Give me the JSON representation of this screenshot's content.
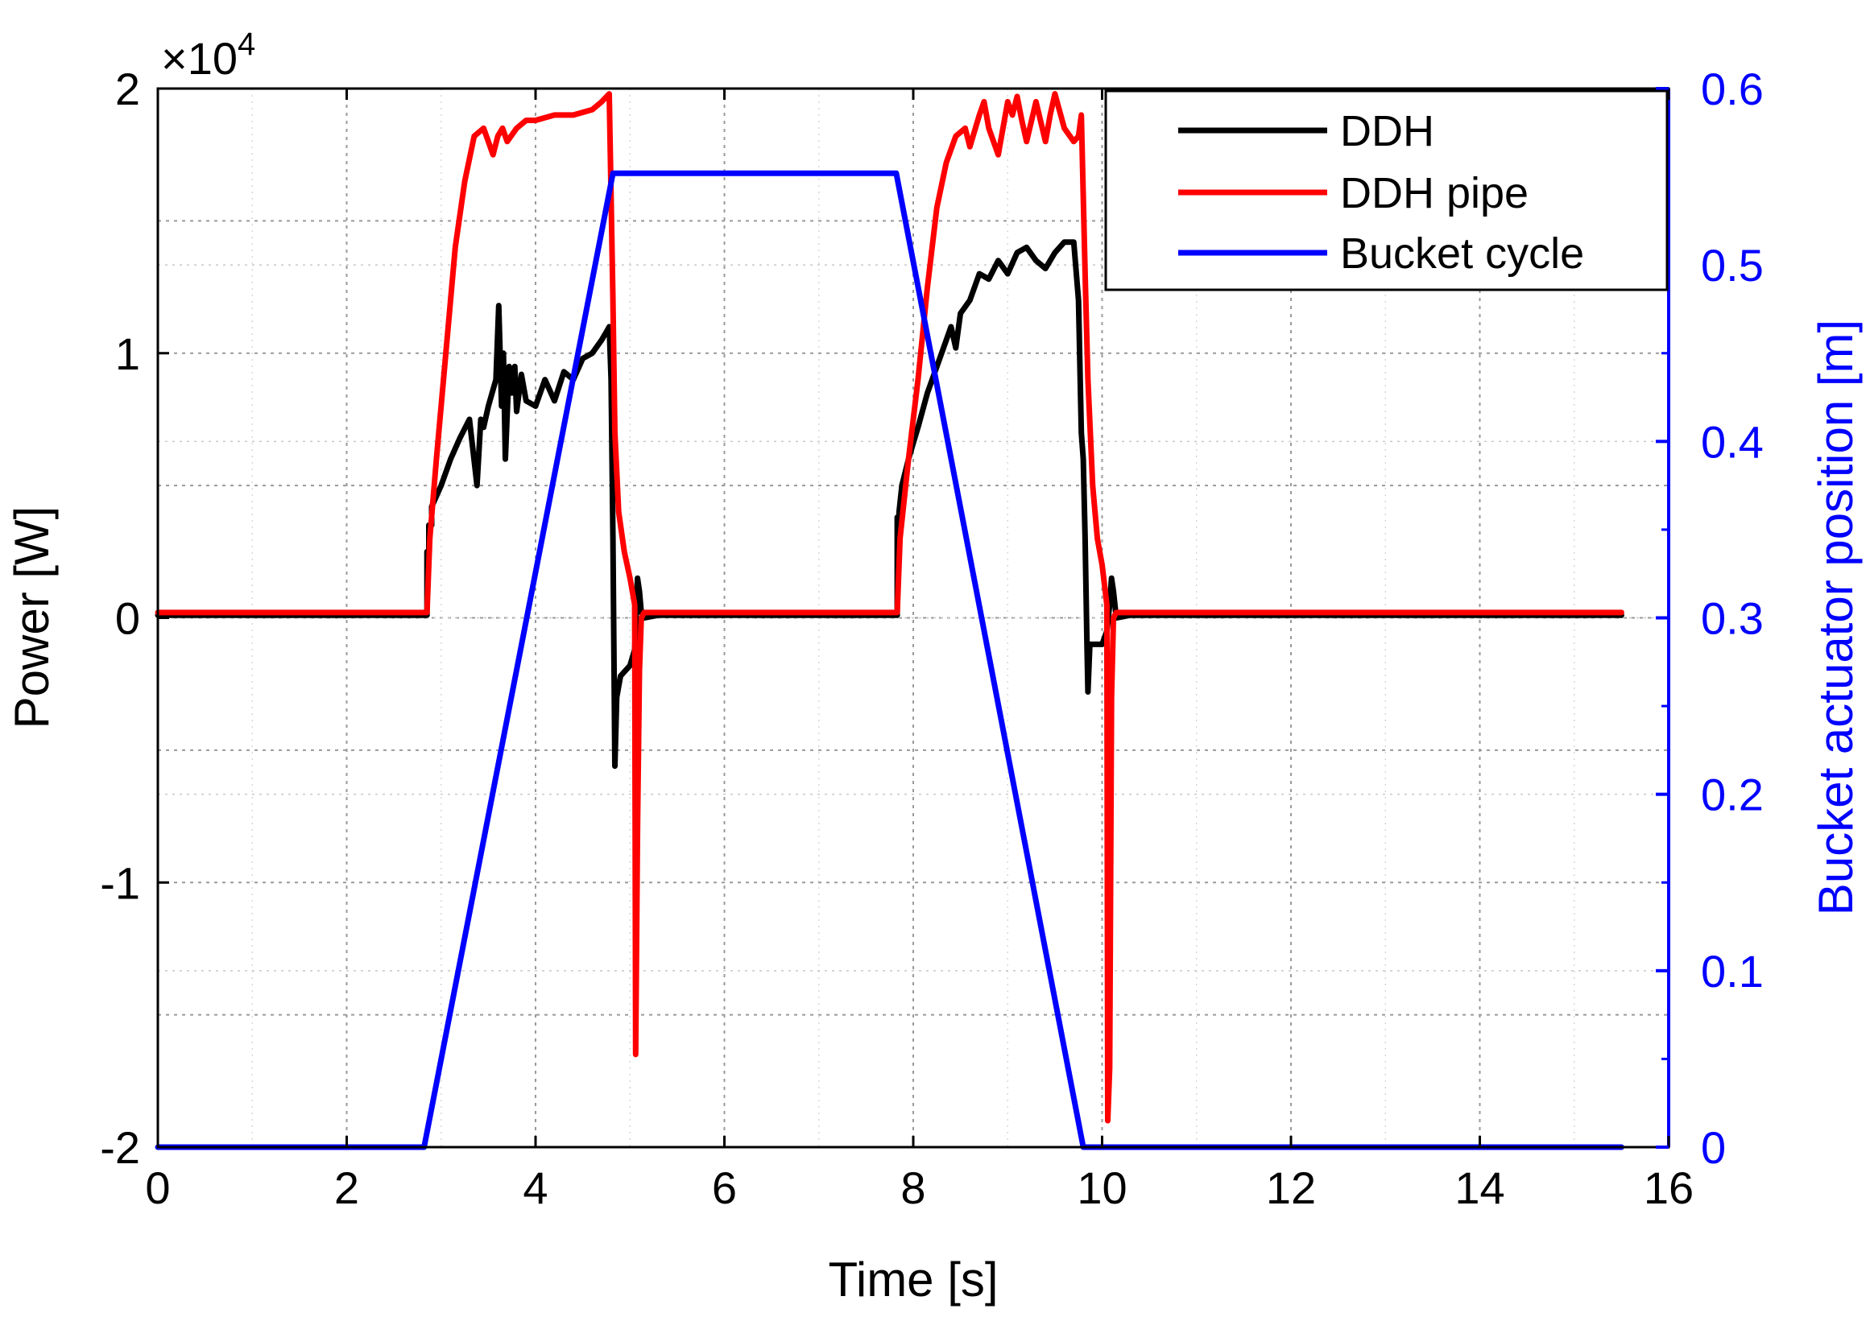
{
  "chart_data": {
    "type": "line",
    "xlabel": "Time [s]",
    "ylabel_left": "Power [W]",
    "ylabel_right": "Bucket actuator position [m]",
    "y_multiplier": "×10",
    "y_multiplier_exp": "4",
    "xlim": [
      0,
      16
    ],
    "ylim_left": [
      -2,
      2
    ],
    "ylim_right": [
      0,
      0.6
    ],
    "x_ticks": [
      "0",
      "2",
      "4",
      "6",
      "8",
      "10",
      "12",
      "14",
      "16"
    ],
    "y_left_ticks": [
      "2",
      "1",
      "0",
      "-1",
      "-2"
    ],
    "y_right_ticks": [
      "0.6",
      "0.5",
      "0.4",
      "0.3",
      "0.2",
      "0.1",
      "0"
    ],
    "grid": true,
    "legend_position": "top-right",
    "colors": {
      "ddh": "#000000",
      "ddh_pipe": "#ff0000",
      "bucket": "#0000ff",
      "right_axis": "#0000ff"
    },
    "series": [
      {
        "name": "DDH",
        "axis": "left",
        "x": [
          0,
          2.85,
          2.85,
          2.87,
          2.87,
          2.9,
          2.9,
          3.0,
          3.1,
          3.2,
          3.3,
          3.38,
          3.42,
          3.45,
          3.5,
          3.58,
          3.61,
          3.64,
          3.66,
          3.68,
          3.72,
          3.75,
          3.78,
          3.8,
          3.85,
          3.9,
          4.0,
          4.1,
          4.2,
          4.3,
          4.4,
          4.5,
          4.6,
          4.7,
          4.75,
          4.78,
          4.8,
          4.82,
          4.84,
          4.86,
          4.9,
          5.0,
          5.05,
          5.08,
          5.1,
          5.12,
          5.15,
          5.3,
          7.83,
          7.83,
          7.85,
          7.85,
          7.88,
          7.95,
          8.05,
          8.15,
          8.3,
          8.4,
          8.45,
          8.5,
          8.6,
          8.7,
          8.8,
          8.9,
          9.0,
          9.1,
          9.2,
          9.3,
          9.4,
          9.5,
          9.6,
          9.7,
          9.75,
          9.78,
          9.8,
          9.82,
          9.84,
          9.85,
          9.87,
          9.9,
          10.0,
          10.05,
          10.08,
          10.1,
          10.12,
          10.15,
          10.3,
          15.5
        ],
        "y": [
          0.01,
          0.01,
          0.25,
          0.25,
          0.35,
          0.35,
          0.42,
          0.5,
          0.6,
          0.68,
          0.75,
          0.5,
          0.75,
          0.72,
          0.8,
          0.9,
          1.18,
          0.8,
          1.0,
          0.6,
          0.95,
          0.85,
          0.95,
          0.78,
          0.92,
          0.82,
          0.8,
          0.9,
          0.82,
          0.93,
          0.9,
          0.98,
          1.0,
          1.05,
          1.08,
          1.1,
          0.9,
          0.3,
          -0.56,
          -0.3,
          -0.22,
          -0.18,
          -0.12,
          0.15,
          0.1,
          0.02,
          0.0,
          0.01,
          0.01,
          0.38,
          0.38,
          0.4,
          0.5,
          0.6,
          0.72,
          0.85,
          1.0,
          1.1,
          1.02,
          1.15,
          1.2,
          1.3,
          1.28,
          1.35,
          1.3,
          1.38,
          1.4,
          1.35,
          1.32,
          1.38,
          1.42,
          1.42,
          1.2,
          0.7,
          0.6,
          0.3,
          -0.1,
          -0.28,
          -0.1,
          -0.1,
          -0.1,
          -0.05,
          0.05,
          0.15,
          0.1,
          0.0,
          0.01,
          0.01
        ]
      },
      {
        "name": "DDH pipe",
        "axis": "left",
        "x": [
          0,
          2.85,
          2.88,
          2.95,
          3.05,
          3.15,
          3.25,
          3.35,
          3.45,
          3.5,
          3.55,
          3.6,
          3.65,
          3.7,
          3.8,
          3.9,
          4.0,
          4.2,
          4.4,
          4.6,
          4.7,
          4.78,
          4.82,
          4.84,
          4.88,
          4.94,
          5.0,
          5.05,
          5.06,
          5.08,
          5.1,
          5.12,
          5.15,
          5.3,
          7.83,
          7.86,
          7.95,
          8.05,
          8.15,
          8.25,
          8.35,
          8.45,
          8.55,
          8.6,
          8.7,
          8.75,
          8.8,
          8.9,
          9.0,
          9.05,
          9.1,
          9.15,
          9.2,
          9.3,
          9.4,
          9.45,
          9.5,
          9.6,
          9.7,
          9.75,
          9.78,
          9.82,
          9.85,
          9.9,
          9.95,
          10.0,
          10.05,
          10.06,
          10.08,
          10.1,
          10.12,
          10.15,
          10.3,
          15.5
        ],
        "y": [
          0.02,
          0.02,
          0.3,
          0.6,
          1.0,
          1.4,
          1.65,
          1.82,
          1.85,
          1.8,
          1.75,
          1.82,
          1.85,
          1.8,
          1.85,
          1.88,
          1.88,
          1.9,
          1.9,
          1.92,
          1.95,
          1.98,
          1.2,
          0.7,
          0.4,
          0.25,
          0.15,
          0.05,
          -1.65,
          -0.8,
          -0.2,
          0.0,
          0.02,
          0.02,
          0.02,
          0.3,
          0.6,
          0.9,
          1.25,
          1.55,
          1.72,
          1.82,
          1.85,
          1.78,
          1.9,
          1.95,
          1.85,
          1.75,
          1.95,
          1.9,
          1.97,
          1.88,
          1.8,
          1.95,
          1.8,
          1.9,
          1.98,
          1.85,
          1.8,
          1.82,
          1.9,
          1.3,
          0.9,
          0.5,
          0.3,
          0.2,
          0.05,
          -1.9,
          -1.7,
          -0.3,
          0.0,
          0.02,
          0.02,
          0.02
        ]
      },
      {
        "name": "Bucket cycle",
        "axis": "right",
        "x": [
          0,
          2.82,
          4.82,
          7.82,
          9.8,
          15.5
        ],
        "y": [
          0,
          0,
          0.552,
          0.552,
          0,
          0
        ]
      }
    ]
  }
}
